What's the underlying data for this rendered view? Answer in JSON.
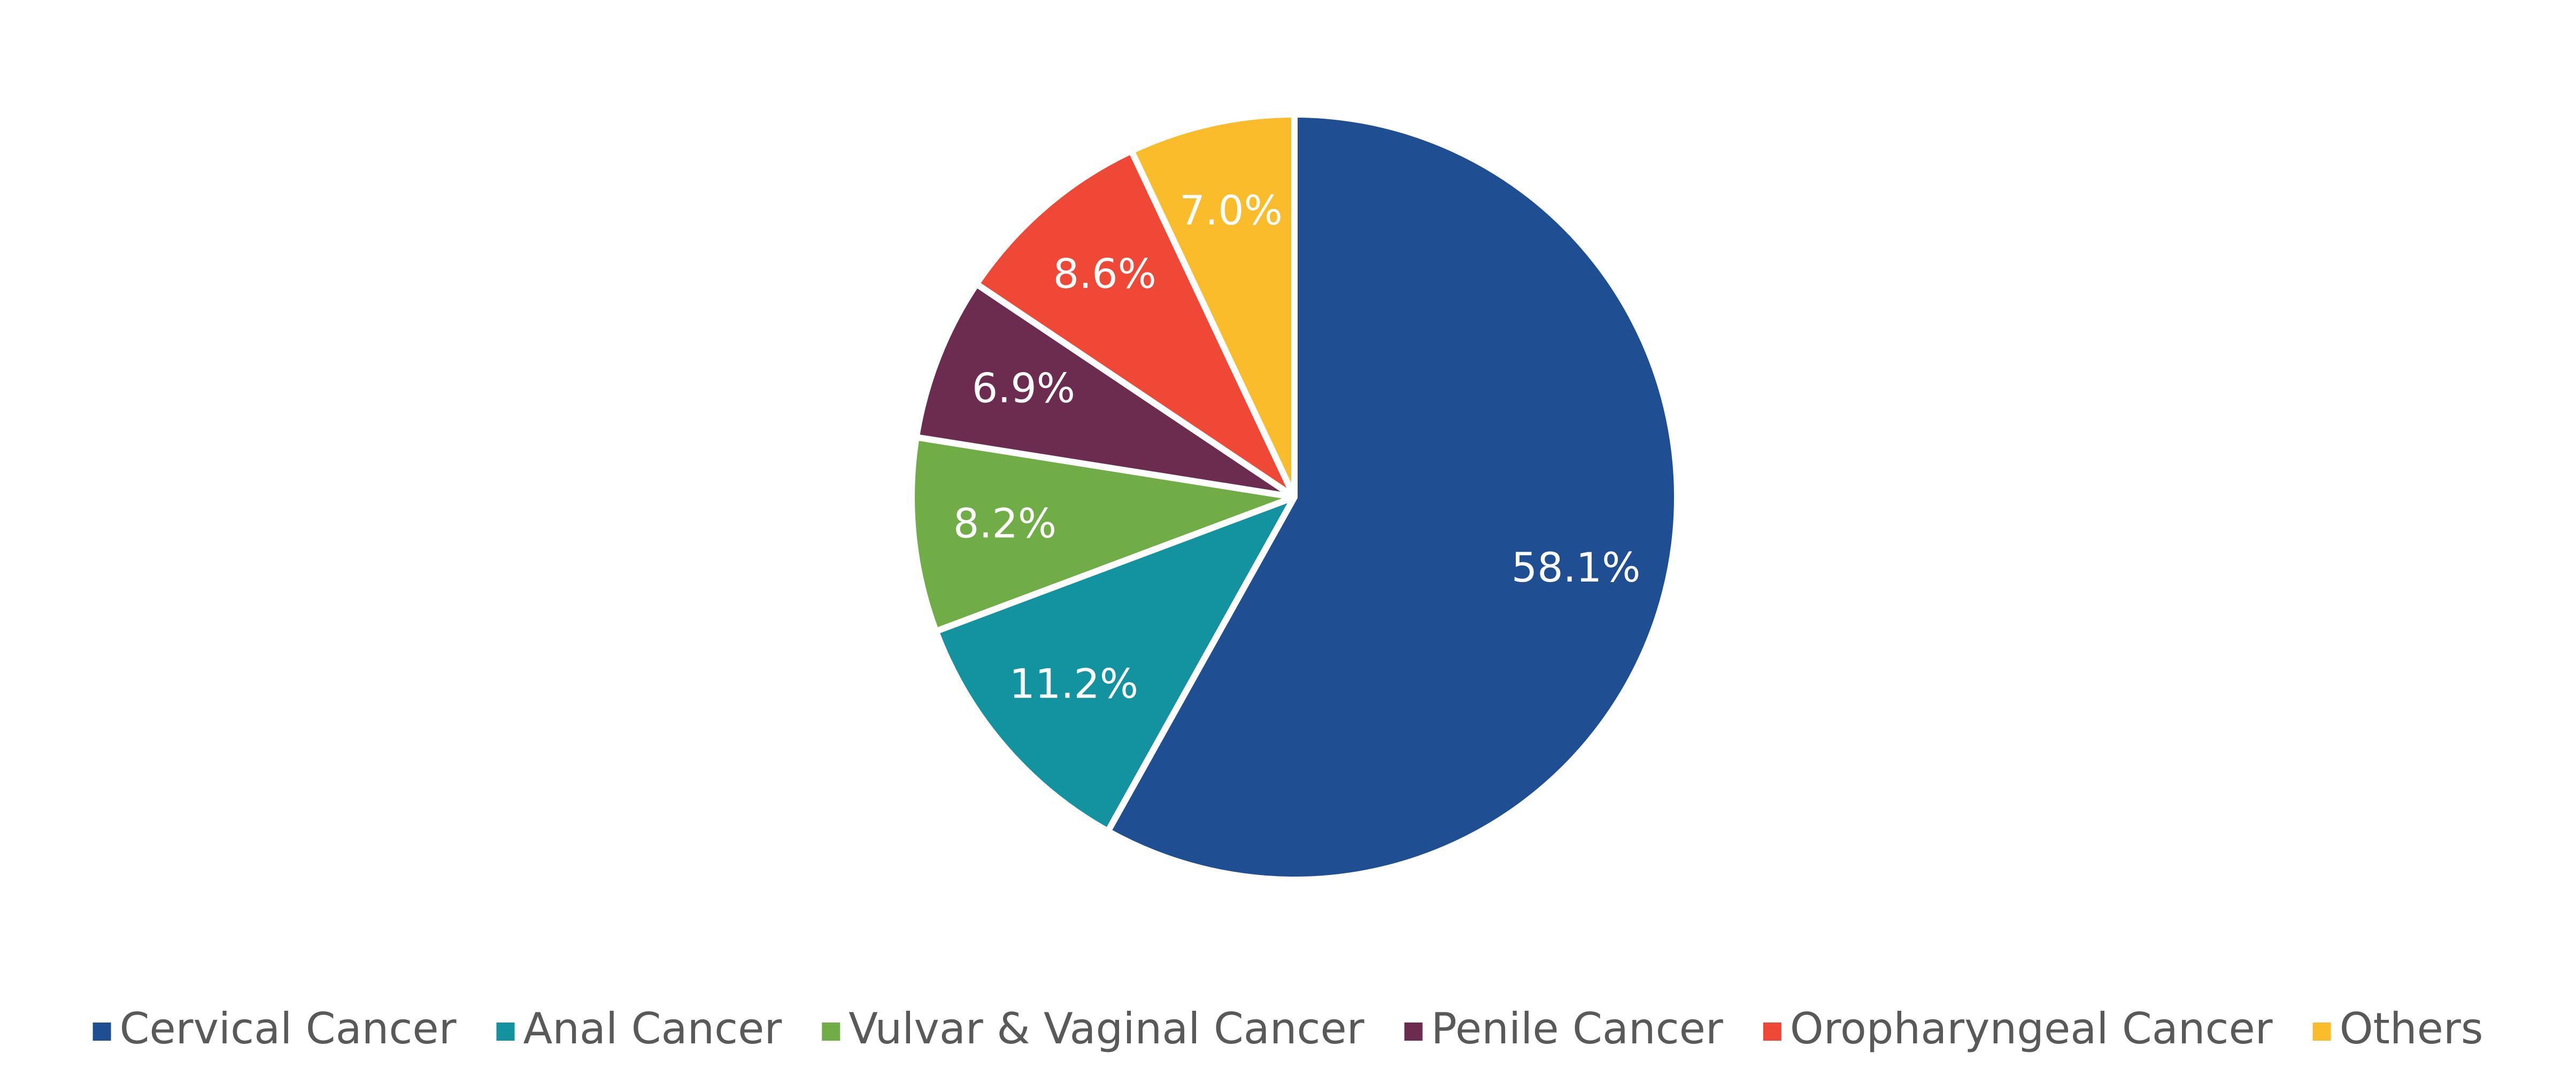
{
  "chart_data": {
    "type": "pie",
    "categories": [
      "Cervical Cancer",
      "Anal Cancer",
      "Vulvar & Vaginal Cancer",
      "Penile Cancer",
      "Oropharyngeal Cancer",
      "Others"
    ],
    "values": [
      58.1,
      11.2,
      8.2,
      6.9,
      8.6,
      7.0
    ],
    "value_labels": [
      "58.1%",
      "11.2%",
      "8.2%",
      "6.9%",
      "8.6%",
      "7.0%"
    ],
    "colors": [
      "#1f4e93",
      "#1392a0",
      "#70ad47",
      "#6b2c4f",
      "#ef4836",
      "#fbbc2c"
    ],
    "legend": "bottom"
  }
}
